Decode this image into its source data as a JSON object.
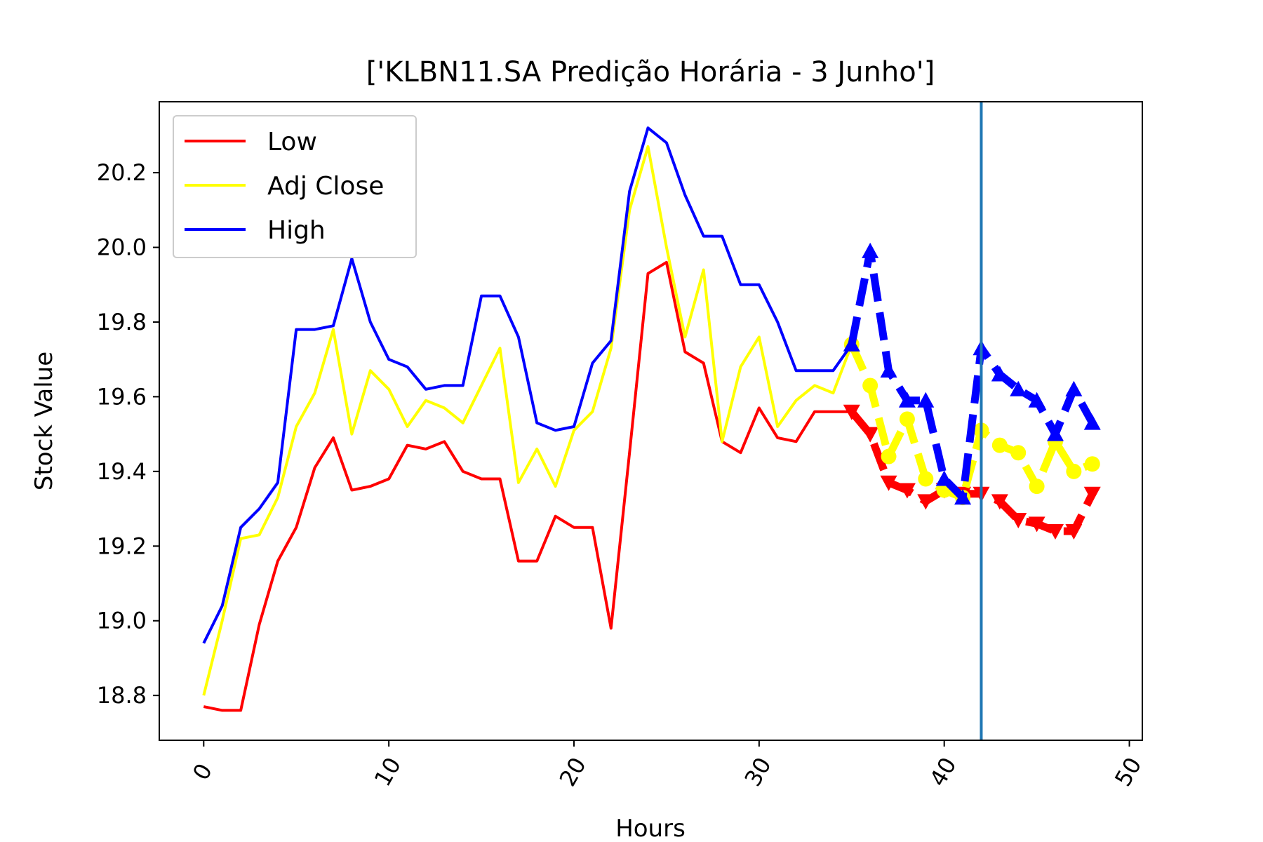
{
  "chart_data": {
    "type": "line",
    "title": "['KLBN11.SA Predição Horária - 3 Junho']",
    "xlabel": "Hours",
    "ylabel": "Stock Value",
    "xlim": [
      -2.4,
      50.7
    ],
    "ylim": [
      18.68,
      20.39
    ],
    "xticks": [
      "0",
      "10",
      "20",
      "30",
      "40",
      "50"
    ],
    "yticks": [
      "18.8",
      "19.0",
      "19.2",
      "19.4",
      "19.6",
      "19.8",
      "20.0",
      "20.2"
    ],
    "grid": false,
    "legend_position": "top-left",
    "vertical_line_x": 42,
    "series": [
      {
        "name": "Low",
        "color": "#ff0000",
        "x": [
          0,
          1,
          2,
          3,
          4,
          5,
          6,
          7,
          8,
          9,
          10,
          11,
          12,
          13,
          14,
          15,
          16,
          17,
          18,
          19,
          20,
          21,
          22,
          23,
          24,
          25,
          26,
          27,
          28,
          29,
          30,
          31,
          32,
          33,
          34,
          35
        ],
        "values": [
          18.77,
          18.76,
          18.76,
          18.99,
          19.16,
          19.25,
          19.41,
          19.49,
          19.35,
          19.36,
          19.38,
          19.47,
          19.46,
          19.48,
          19.4,
          19.38,
          19.38,
          19.16,
          19.16,
          19.28,
          19.25,
          19.25,
          18.98,
          19.45,
          19.93,
          19.96,
          19.72,
          19.69,
          19.48,
          19.45,
          19.57,
          19.49,
          19.48,
          19.56,
          19.56,
          19.56
        ]
      },
      {
        "name": "Adj Close",
        "color": "#ffff00",
        "x": [
          0,
          1,
          2,
          3,
          4,
          5,
          6,
          7,
          8,
          9,
          10,
          11,
          12,
          13,
          14,
          15,
          16,
          17,
          18,
          19,
          20,
          21,
          22,
          23,
          24,
          25,
          26,
          27,
          28,
          29,
          30,
          31,
          32,
          33,
          34,
          35
        ],
        "values": [
          18.8,
          19.0,
          19.22,
          19.23,
          19.33,
          19.52,
          19.61,
          19.78,
          19.5,
          19.67,
          19.62,
          19.52,
          19.59,
          19.57,
          19.53,
          19.63,
          19.73,
          19.37,
          19.46,
          19.36,
          19.51,
          19.56,
          19.73,
          20.1,
          20.27,
          20.0,
          19.76,
          19.94,
          19.48,
          19.68,
          19.76,
          19.52,
          19.59,
          19.63,
          19.61,
          19.74
        ]
      },
      {
        "name": "High",
        "color": "#0000ff",
        "x": [
          0,
          1,
          2,
          3,
          4,
          5,
          6,
          7,
          8,
          9,
          10,
          11,
          12,
          13,
          14,
          15,
          16,
          17,
          18,
          19,
          20,
          21,
          22,
          23,
          24,
          25,
          26,
          27,
          28,
          29,
          30,
          31,
          32,
          33,
          34,
          35
        ],
        "values": [
          18.94,
          19.04,
          19.25,
          19.3,
          19.37,
          19.78,
          19.78,
          19.79,
          19.97,
          19.8,
          19.7,
          19.68,
          19.62,
          19.63,
          19.63,
          19.87,
          19.87,
          19.76,
          19.53,
          19.51,
          19.52,
          19.69,
          19.75,
          20.15,
          20.32,
          20.28,
          20.14,
          20.03,
          20.03,
          19.9,
          19.9,
          19.8,
          19.67,
          19.67,
          19.67,
          19.74
        ]
      }
    ],
    "prediction_series": [
      {
        "ref": "Low",
        "color": "#ff0000",
        "marker": "triangle-down",
        "x": [
          35,
          36,
          37,
          38,
          39,
          40,
          41,
          42,
          43,
          44,
          45,
          46,
          47,
          48
        ],
        "values": [
          19.56,
          19.5,
          19.37,
          19.35,
          19.32,
          19.35,
          19.34,
          19.34,
          19.32,
          19.27,
          19.26,
          19.24,
          19.24,
          19.34
        ]
      },
      {
        "ref": "Adj Close",
        "color": "#ffff00",
        "marker": "circle",
        "x": [
          35,
          36,
          37,
          38,
          39,
          40,
          41,
          42,
          43,
          44,
          45,
          46,
          47,
          48
        ],
        "values": [
          19.74,
          19.63,
          19.44,
          19.54,
          19.38,
          19.35,
          19.33,
          19.51,
          19.47,
          19.45,
          19.36,
          19.48,
          19.4,
          19.42
        ]
      },
      {
        "ref": "High",
        "color": "#0000ff",
        "marker": "triangle-up",
        "x": [
          35,
          36,
          37,
          38,
          39,
          40,
          41,
          42,
          43,
          44,
          45,
          46,
          47,
          48
        ],
        "values": [
          19.74,
          19.99,
          19.67,
          19.59,
          19.59,
          19.38,
          19.33,
          19.73,
          19.66,
          19.62,
          19.59,
          19.5,
          19.62,
          19.53
        ]
      }
    ]
  }
}
